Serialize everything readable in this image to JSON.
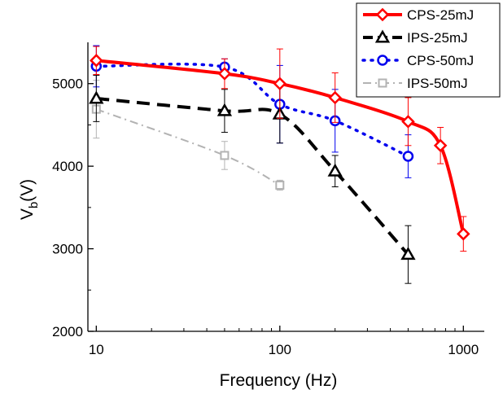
{
  "chart_data": {
    "type": "line",
    "xlabel": "Frequency (Hz)",
    "ylabel_main": "V",
    "ylabel_sub": "b",
    "ylabel_tail": "(V)",
    "x_scale": "log",
    "xlim": [
      9,
      1300
    ],
    "ylim": [
      2000,
      5500
    ],
    "x_ticks": [
      10,
      100,
      1000
    ],
    "x_tick_labels": [
      "10",
      "100",
      "1000"
    ],
    "y_ticks": [
      2000,
      3000,
      4000,
      5000
    ],
    "y_tick_labels": [
      "2000",
      "3000",
      "4000",
      "5000"
    ],
    "legend_position": "top-right",
    "grid": false,
    "series": [
      {
        "name": "CPS-25mJ",
        "color": "#ff0000",
        "marker": "diamond",
        "line_style": "solid",
        "x": [
          10,
          50,
          100,
          200,
          500,
          750,
          1000
        ],
        "y": [
          5280,
          5120,
          5000,
          4830,
          4540,
          4250,
          3180
        ],
        "err": [
          170,
          180,
          420,
          300,
          290,
          220,
          210
        ]
      },
      {
        "name": "IPS-25mJ",
        "color": "#000000",
        "marker": "triangle",
        "line_style": "dashed",
        "x": [
          10,
          50,
          100,
          200,
          500
        ],
        "y": [
          4820,
          4670,
          4630,
          3940,
          2930
        ],
        "err": [
          280,
          260,
          350,
          190,
          350
        ]
      },
      {
        "name": "CPS-50mJ",
        "color": "#0000ee",
        "marker": "circle",
        "line_style": "dotted",
        "x": [
          10,
          50,
          100,
          200,
          500
        ],
        "y": [
          5210,
          5200,
          4750,
          4550,
          4120
        ],
        "err": [
          250,
          100,
          470,
          380,
          260
        ]
      },
      {
        "name": "IPS-50mJ",
        "color": "#b3b3b3",
        "marker": "square",
        "line_style": "dashdot",
        "x": [
          10,
          50,
          100
        ],
        "y": [
          4690,
          4130,
          3770
        ],
        "err": [
          350,
          170,
          60
        ]
      }
    ]
  }
}
